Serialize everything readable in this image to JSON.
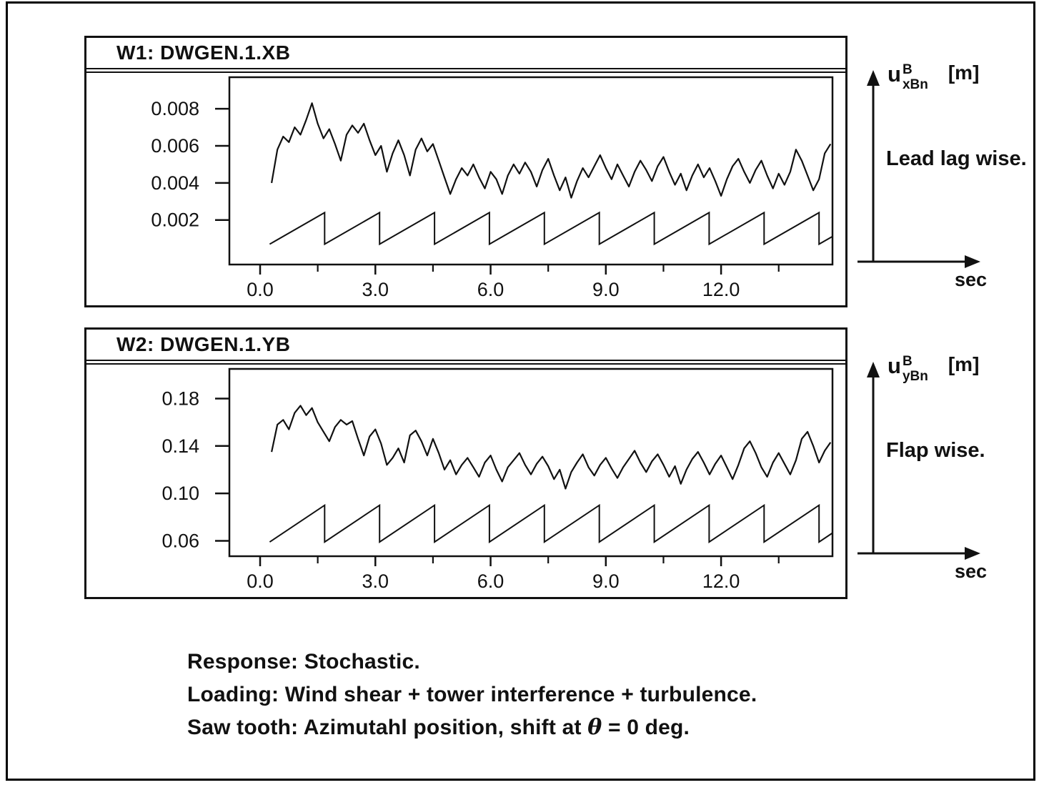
{
  "caption": {
    "line1": "Response: Stochastic.",
    "line2": "Loading: Wind shear + tower interference + turbulence.",
    "line3_prefix": "Saw tooth: Azimutahl position, shift at ",
    "line3_theta": "θ",
    "line3_suffix": " = 0 deg."
  },
  "chart_data": [
    {
      "type": "line",
      "window_title": "W1: DWGEN.1.XB",
      "xlim": [
        -0.8,
        14.9
      ],
      "ylim": [
        -0.0004,
        0.0097
      ],
      "x_major_ticks": [
        0,
        3,
        6,
        9,
        12
      ],
      "x_major_labels": [
        "0.0",
        "3.0",
        "6.0",
        "9.0",
        "12.0"
      ],
      "x_minor_ticks": [
        1.5,
        4.5,
        7.5,
        10.5,
        13.5
      ],
      "y_ticks": [
        0.002,
        0.004,
        0.006,
        0.008
      ],
      "y_tick_labels": [
        "0.002",
        "0.004",
        "0.006",
        "0.008"
      ],
      "axis_label": {
        "base": "u",
        "sup": "B",
        "sub": "xBn",
        "unit": "[m]"
      },
      "side_caption": "Lead lag wise.",
      "x_axis_caption": "sec",
      "series": [
        {
          "name": "response",
          "x_start": 0.3,
          "x_step": 0.15,
          "y_scale": 0.0001,
          "y": [
            40,
            58,
            65,
            62,
            70,
            66,
            74,
            83,
            72,
            64,
            69,
            61,
            52,
            66,
            71,
            67,
            72,
            63,
            55,
            60,
            46,
            56,
            63,
            55,
            44,
            58,
            64,
            57,
            61,
            52,
            43,
            34,
            42,
            48,
            44,
            50,
            43,
            37,
            46,
            42,
            34,
            44,
            50,
            45,
            51,
            46,
            38,
            47,
            53,
            44,
            36,
            43,
            32,
            41,
            48,
            43,
            49,
            55,
            48,
            42,
            50,
            44,
            38,
            46,
            52,
            47,
            41,
            49,
            54,
            46,
            39,
            45,
            36,
            44,
            50,
            43,
            48,
            41,
            33,
            42,
            49,
            53,
            46,
            40,
            47,
            52,
            44,
            37,
            45,
            39,
            46,
            58,
            52,
            44,
            36,
            42,
            56,
            61
          ]
        },
        {
          "name": "azimuth-sawtooth",
          "sawtooth": {
            "start": 0.25,
            "end": 14.9,
            "period": 1.43,
            "min": 0.0007,
            "max": 0.0024
          }
        }
      ]
    },
    {
      "type": "line",
      "window_title": "W2: DWGEN.1.YB",
      "xlim": [
        -0.8,
        14.9
      ],
      "ylim": [
        0.047,
        0.205
      ],
      "x_major_ticks": [
        0,
        3,
        6,
        9,
        12
      ],
      "x_major_labels": [
        "0.0",
        "3.0",
        "6.0",
        "9.0",
        "12.0"
      ],
      "x_minor_ticks": [
        1.5,
        4.5,
        7.5,
        10.5,
        13.5
      ],
      "y_ticks": [
        0.06,
        0.1,
        0.14,
        0.18
      ],
      "y_tick_labels": [
        "0.06",
        "0.10",
        "0.14",
        "0.18"
      ],
      "axis_label": {
        "base": "u",
        "sup": "B",
        "sub": "yBn",
        "unit": "[m]"
      },
      "side_caption": "Flap wise.",
      "x_axis_caption": "sec",
      "series": [
        {
          "name": "response",
          "x_start": 0.3,
          "x_step": 0.15,
          "y_scale": 0.001,
          "y": [
            135,
            158,
            162,
            154,
            168,
            174,
            166,
            172,
            160,
            152,
            144,
            156,
            162,
            158,
            161,
            146,
            132,
            148,
            154,
            142,
            124,
            130,
            138,
            126,
            149,
            153,
            144,
            132,
            146,
            134,
            120,
            128,
            116,
            124,
            130,
            122,
            114,
            126,
            132,
            120,
            110,
            122,
            128,
            134,
            124,
            116,
            125,
            131,
            123,
            112,
            120,
            104,
            118,
            126,
            133,
            122,
            115,
            124,
            130,
            121,
            113,
            122,
            129,
            136,
            126,
            118,
            127,
            133,
            124,
            114,
            123,
            108,
            120,
            129,
            135,
            126,
            116,
            125,
            132,
            122,
            112,
            124,
            138,
            144,
            134,
            122,
            114,
            126,
            134,
            125,
            116,
            128,
            146,
            152,
            140,
            126,
            136,
            143
          ]
        },
        {
          "name": "azimuth-sawtooth",
          "sawtooth": {
            "start": 0.25,
            "end": 14.9,
            "period": 1.43,
            "min": 0.059,
            "max": 0.09
          }
        }
      ]
    }
  ]
}
